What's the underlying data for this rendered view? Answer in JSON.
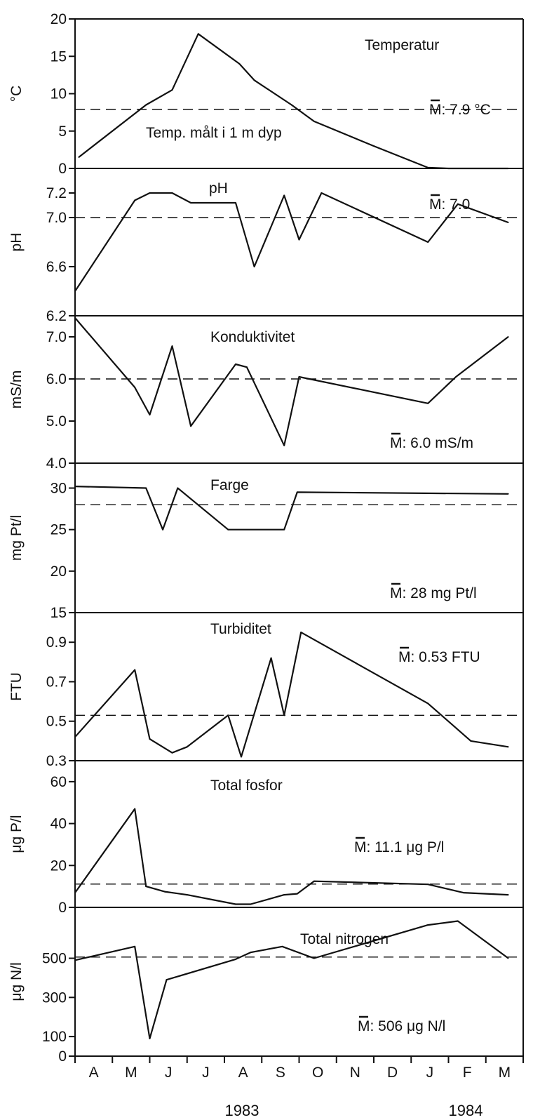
{
  "chart_data": [
    {
      "type": "line",
      "title": "Temperatur",
      "ylabel": "°C",
      "ylim": [
        0,
        20
      ],
      "yticks": [
        "0",
        "5",
        "10",
        "15",
        "20"
      ],
      "annotation": "Temp. målt i 1 m dyp",
      "mean_label": "M: 7.9 °C",
      "mean": 7.9,
      "x": [
        0.1,
        1.9,
        2.6,
        3.3,
        4.4,
        4.8,
        5.8,
        6.4,
        8.0,
        9.45,
        10.0,
        11.15,
        11.6
      ],
      "values": [
        1.5,
        8.5,
        10.5,
        18.0,
        14.0,
        11.8,
        8.5,
        6.3,
        3.0,
        0.1,
        0.0,
        0.0,
        0.0
      ]
    },
    {
      "type": "line",
      "title": "pH",
      "ylabel": "pH",
      "ylim": [
        6.2,
        7.4
      ],
      "yticks": [
        "6.2",
        "6.6",
        "7.0",
        "7.2"
      ],
      "mean_label": "M: 7.0",
      "mean": 7.0,
      "x": [
        0.0,
        1.6,
        2.0,
        2.6,
        3.1,
        4.3,
        4.8,
        5.6,
        6.0,
        6.6,
        9.45,
        10.25,
        11.6
      ],
      "values": [
        6.4,
        7.14,
        7.2,
        7.2,
        7.12,
        7.12,
        6.6,
        7.18,
        6.82,
        7.2,
        6.8,
        7.11,
        6.96
      ]
    },
    {
      "type": "line",
      "title": "Konduktivitet",
      "ylabel": "mS/m",
      "ylim": [
        4.0,
        7.5
      ],
      "yticks": [
        "4.0",
        "5.0",
        "6.0",
        "7.0"
      ],
      "mean_label": "M: 6.0 mS/m",
      "mean": 6.0,
      "x": [
        0.0,
        1.6,
        2.0,
        2.6,
        3.1,
        4.3,
        4.6,
        5.6,
        6.0,
        9.45,
        10.2,
        11.6
      ],
      "values": [
        7.45,
        5.8,
        5.15,
        6.78,
        4.88,
        6.35,
        6.28,
        4.42,
        6.05,
        5.42,
        6.05,
        7.0
      ]
    },
    {
      "type": "line",
      "title": "Farge",
      "ylabel": "mg Pt/l",
      "ylim": [
        15,
        33
      ],
      "yticks": [
        "15",
        "20",
        "25",
        "30"
      ],
      "mean_label": "M: 28 mg Pt/l",
      "mean": 28,
      "x": [
        0.0,
        1.9,
        2.35,
        2.75,
        4.1,
        5.6,
        5.95,
        11.6
      ],
      "values": [
        30.2,
        30.0,
        25.0,
        30.0,
        25.0,
        25.0,
        29.5,
        29.3
      ]
    },
    {
      "type": "line",
      "title": "Turbiditet",
      "ylabel": "FTU",
      "ylim": [
        0.3,
        1.05
      ],
      "yticks": [
        "0.3",
        "0.5",
        "0.7",
        "0.9"
      ],
      "mean_label": "M: 0.53 FTU",
      "mean": 0.53,
      "x": [
        0.0,
        1.6,
        2.0,
        2.6,
        3.0,
        4.1,
        4.45,
        5.25,
        5.6,
        6.05,
        9.45,
        10.6,
        11.6
      ],
      "values": [
        0.42,
        0.76,
        0.41,
        0.34,
        0.37,
        0.53,
        0.32,
        0.82,
        0.53,
        0.95,
        0.59,
        0.4,
        0.37
      ]
    },
    {
      "type": "line",
      "title": "Total fosfor",
      "ylabel": "μg P/l",
      "ylim": [
        0,
        70
      ],
      "yticks": [
        "0",
        "20",
        "40",
        "60"
      ],
      "mean_label": "M: 11.1 μg P/l",
      "mean": 11.1,
      "x": [
        0.0,
        1.6,
        1.9,
        2.4,
        3.0,
        4.3,
        4.7,
        5.6,
        5.95,
        6.4,
        9.45,
        10.4,
        11.6
      ],
      "values": [
        7.0,
        47.0,
        10.0,
        7.5,
        6.0,
        1.5,
        1.5,
        6.0,
        6.5,
        12.5,
        11.0,
        7.0,
        6.0
      ]
    },
    {
      "type": "line",
      "title": "Total nitrogen",
      "ylabel": "μg N/l",
      "ylim": [
        0,
        760
      ],
      "yticks": [
        "0",
        "100",
        "300",
        "500"
      ],
      "mean_label": "M: 506 μg N/l",
      "mean": 506,
      "x": [
        0.0,
        1.6,
        2.0,
        2.45,
        4.3,
        4.7,
        5.55,
        6.4,
        9.45,
        10.25,
        11.6
      ],
      "values": [
        490,
        560,
        90,
        390,
        495,
        530,
        560,
        500,
        670,
        690,
        500
      ]
    }
  ],
  "x_axis": {
    "months": [
      "A",
      "M",
      "J",
      "J",
      "A",
      "S",
      "O",
      "N",
      "D",
      "J",
      "F",
      "M"
    ],
    "years": [
      "1983",
      "1984"
    ]
  }
}
